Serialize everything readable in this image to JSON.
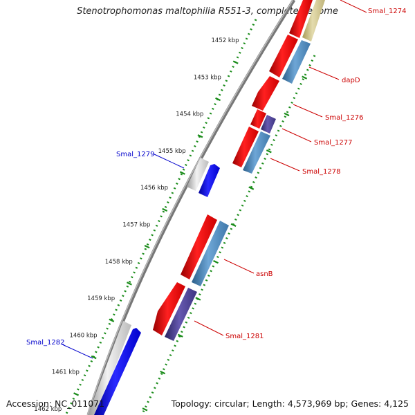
{
  "title": "Stenotrophomonas maltophilia R551-3, complete genome",
  "footer": {
    "accession": "Accession: NC_011071",
    "topology": "Topology: circular; Length: 4,573,969 bp; Genes: 4,125"
  },
  "ruler": {
    "labels": [
      "1452 kbp",
      "1453 kbp",
      "1454 kbp",
      "1455 kbp",
      "1456 kbp",
      "1457 kbp",
      "1458 kbp",
      "1459 kbp",
      "1460 kbp",
      "1461 kbp",
      "1462 kbp"
    ]
  },
  "genes_outer": [
    {
      "name": "Smal_1279",
      "color": "#0000cc"
    },
    {
      "name": "Smal_1282",
      "color": "#0000cc"
    }
  ],
  "genes_inner": [
    {
      "name": "Smal_1274",
      "color": "#cc0000"
    },
    {
      "name": "dapD",
      "color": "#cc0000"
    },
    {
      "name": "Smal_1276",
      "color": "#cc0000"
    },
    {
      "name": "Smal_1277",
      "color": "#cc0000"
    },
    {
      "name": "Smal_1278",
      "color": "#cc0000"
    },
    {
      "name": "asnB",
      "color": "#cc0000"
    },
    {
      "name": "Smal_1281",
      "color": "#cc0000"
    }
  ],
  "colors": {
    "forward_cds": "#0000ff",
    "reverse_cds": "#ff0000",
    "forward_gene": "#c8c8c8",
    "reverse_blue": "#4682b4",
    "reverse_purple": "#483d8b",
    "reverse_tan": "#d2c896",
    "ticks": "#1a8c1a",
    "backbone": "#777777"
  }
}
